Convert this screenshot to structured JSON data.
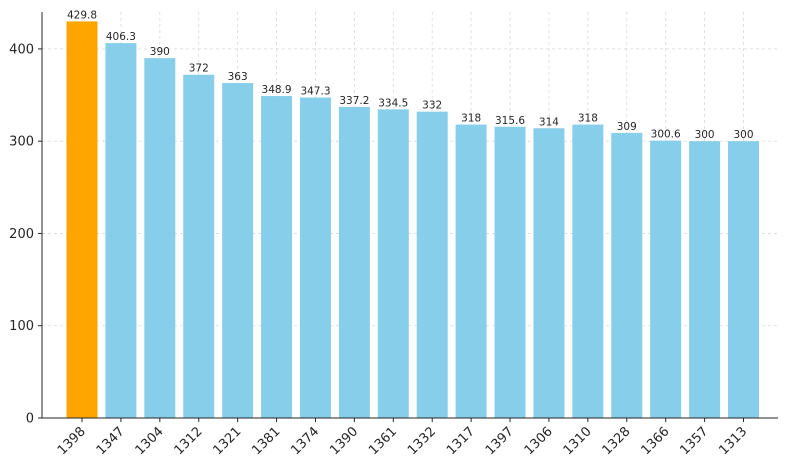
{
  "chart_data": {
    "type": "bar",
    "categories": [
      "1398",
      "1347",
      "1304",
      "1312",
      "1321",
      "1381",
      "1374",
      "1390",
      "1361",
      "1332",
      "1317",
      "1397",
      "1306",
      "1310",
      "1328",
      "1366",
      "1357",
      "1313"
    ],
    "values": [
      429.8,
      406.3,
      390,
      372,
      363,
      348.9,
      347.3,
      337.2,
      334.5,
      332,
      318,
      315.6,
      314,
      318,
      309,
      300.6,
      300,
      300
    ],
    "value_labels": [
      "429.8",
      "406.3",
      "390",
      "372",
      "363",
      "348.9",
      "347.3",
      "337.2",
      "334.5",
      "332",
      "318",
      "315.6",
      "314",
      "318",
      "309",
      "300.6",
      "300",
      "300"
    ],
    "title": "",
    "xlabel": "",
    "ylabel": "",
    "ylim": [
      0,
      440
    ],
    "yticks": [
      0,
      100,
      200,
      300,
      400
    ],
    "ytick_labels": [
      "0",
      "100",
      "200",
      "300",
      "400"
    ],
    "grid": true,
    "colors": {
      "highlight": "#FFA500",
      "default": "#87CEEB"
    },
    "highlight_index": 0
  }
}
